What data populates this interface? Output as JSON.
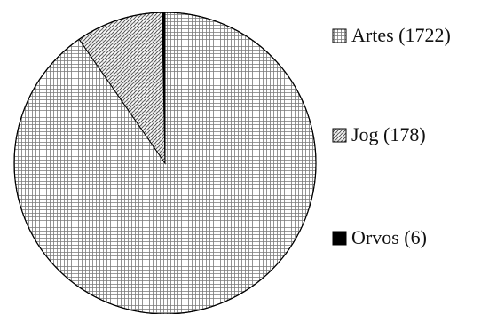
{
  "chart_data": {
    "type": "pie",
    "title": "",
    "slices": [
      {
        "label": "Artes (1722)",
        "value": 1722,
        "pattern": "grid"
      },
      {
        "label": "Jog (178)",
        "value": 178,
        "pattern": "hatch"
      },
      {
        "label": "Orvos (6)",
        "value": 6,
        "pattern": "solid"
      }
    ],
    "legend_placement": "right",
    "border_color": "#000000",
    "background_color": "#ffffff"
  }
}
